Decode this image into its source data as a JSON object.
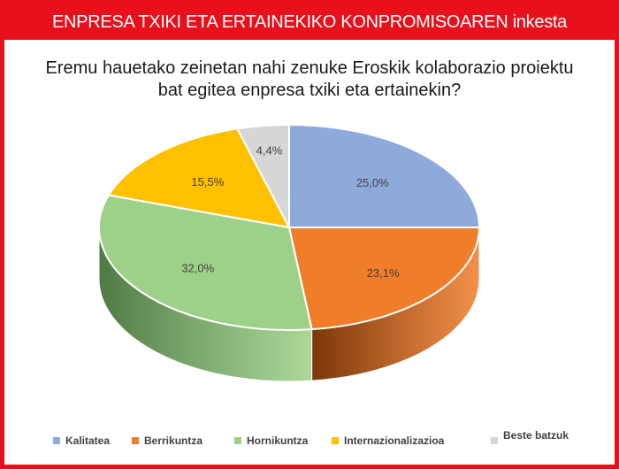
{
  "header": {
    "title": "ENPRESA TXIKI ETA ERTAINEKIKO KONPROMISOAREN inkesta"
  },
  "question": {
    "line1": "Eremu hauetako zeinetan nahi zenuke Eroskik kolaborazio proiektu",
    "line2": "bat egitea enpresa txiki eta ertainekin?"
  },
  "chart_data": {
    "type": "pie",
    "title": "Eremu hauetako zeinetan nahi zenuke Eroskik kolaborazio proiektu bat egitea enpresa txiki eta ertainekin?",
    "categories": [
      "Kalitatea",
      "Berrikuntza",
      "Hornikuntza",
      "Internazionalizazioa",
      "Beste batzuk"
    ],
    "values": [
      25.0,
      23.1,
      32.0,
      15.5,
      4.4
    ],
    "data_labels": [
      "25,0%",
      "23,1%",
      "32,0%",
      "15,5%",
      "4,4%"
    ],
    "colors": [
      "#8eaadb",
      "#f07d2a",
      "#9ed188",
      "#ffc000",
      "#d6d6d6"
    ],
    "side_colors": [
      "#3f5f94",
      "#7a3608",
      "#4f7a44",
      "#a88000",
      "#8a8a8a"
    ],
    "legend_position": "bottom"
  }
}
